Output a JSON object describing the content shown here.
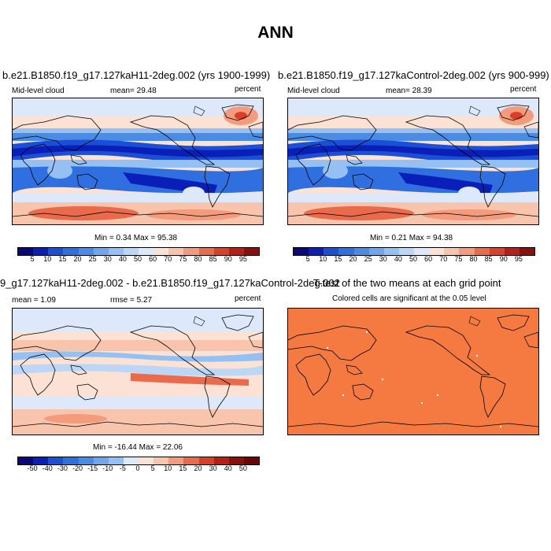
{
  "title": "ANN",
  "panels": [
    {
      "case_title": "b.e21.B1850.f19_g17.127kaH11-2deg.002 (yrs 1900-1999)",
      "variable": "Mid-level cloud",
      "mean_text": "mean=  29.48",
      "units": "percent",
      "minmax_text": "Min =   0.34 Max =  95.38"
    },
    {
      "case_title": "b.e21.B1850.f19_g17.127kaControl-2deg.002 (yrs 900-999)",
      "variable": "Mid-level cloud",
      "mean_text": "mean=  28.39",
      "units": "percent",
      "minmax_text": "Min =   0.21 Max =  94.38"
    },
    {
      "case_title": "9_g17.127kaH11-2deg.002 - b.e21.B1850.f19_g17.127kaControl-2deg.002",
      "mean_text": "mean =   1.09",
      "rmse_text": "rmse =   5.27",
      "units": "percent",
      "minmax_text": "Min = -16.44 Max =  22.06"
    },
    {
      "case_title": "T-test of the two means at each grid point",
      "subtitle": "Colored cells are significant at the 0.05 level"
    }
  ],
  "colorbar_abs": {
    "labels": [
      "5",
      "10",
      "15",
      "20",
      "25",
      "30",
      "40",
      "50",
      "60",
      "70",
      "75",
      "80",
      "85",
      "90",
      "95"
    ],
    "colors": [
      "#08087a",
      "#0a1fb8",
      "#1a4fd6",
      "#2f6fe0",
      "#4a8be6",
      "#6fa6ee",
      "#94c0f4",
      "#bcd6f8",
      "#dde9fb",
      "#fbe2d5",
      "#f8c4ac",
      "#f39b7c",
      "#ea6a4c",
      "#d8402a",
      "#b81e16",
      "#8b0f0a"
    ]
  },
  "colorbar_diff": {
    "labels": [
      "-50",
      "-40",
      "-30",
      "-20",
      "-15",
      "-10",
      "-5",
      "0",
      "5",
      "10",
      "15",
      "20",
      "30",
      "40",
      "50"
    ],
    "colors": [
      "#08087a",
      "#0a1fb8",
      "#1a4fd6",
      "#2f6fe0",
      "#4a8be6",
      "#6fa6ee",
      "#94c0f4",
      "#dde9fb",
      "#fbe2d5",
      "#f8c4ac",
      "#f39b7c",
      "#ea6a4c",
      "#d8402a",
      "#b81e16",
      "#8b0f0a",
      "#6b0606"
    ]
  },
  "colors": {
    "ttest_fill": "#f47a42",
    "coast": "#000000"
  }
}
